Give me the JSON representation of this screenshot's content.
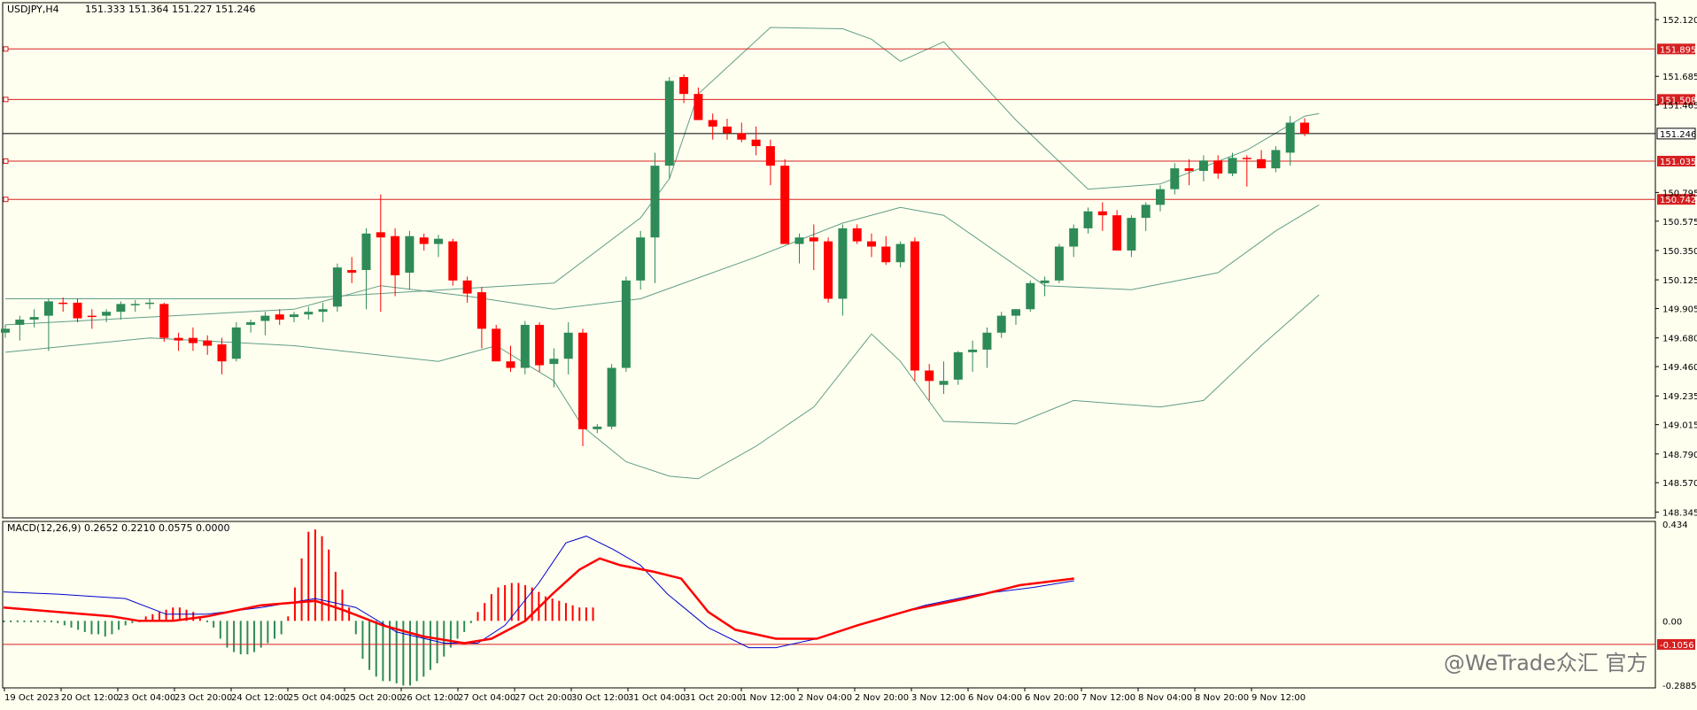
{
  "header": {
    "symbol": "USDJPY,H4",
    "ohlc": "151.333 151.364 151.227 151.246"
  },
  "macd_label": "MACD(12,26,9) 0.2652 0.2210 0.0575 0.0000",
  "watermark": "@WeTrade众汇 官方",
  "colors": {
    "background": "#fffff0",
    "bull": "#2e8b57",
    "bear": "#ff0000",
    "band": "#5f9e86",
    "level": "#d62020",
    "macd_main": "#ff0000",
    "macd_signal": "#0000cc"
  },
  "chart_data": {
    "type": "candlestick",
    "price_axis": {
      "min": 148.3,
      "max": 152.25,
      "ticks": [
        "152.120",
        "151.895",
        "151.685",
        "151.465",
        "151.246",
        "151.035",
        "150.795",
        "150.742",
        "150.575",
        "150.350",
        "150.125",
        "149.905",
        "149.680",
        "149.460",
        "149.235",
        "149.015",
        "148.790",
        "148.570",
        "148.345"
      ]
    },
    "level_lines": [
      {
        "price": 151.895,
        "label": "151.895"
      },
      {
        "price": 151.508,
        "label": "151.508"
      },
      {
        "price": 151.035,
        "label": "151.035"
      },
      {
        "price": 150.742,
        "label": "150.742"
      }
    ],
    "current_price": {
      "price": 151.246,
      "label": "151.246"
    },
    "time_labels": [
      "19 Oct 2023",
      "20 Oct 12:00",
      "23 Oct 04:00",
      "23 Oct 20:00",
      "24 Oct 12:00",
      "25 Oct 04:00",
      "25 Oct 20:00",
      "26 Oct 12:00",
      "27 Oct 04:00",
      "27 Oct 20:00",
      "30 Oct 12:00",
      "31 Oct 04:00",
      "31 Oct 20:00",
      "1 Nov 12:00",
      "2 Nov 04:00",
      "2 Nov 20:00",
      "3 Nov 12:00",
      "6 Nov 04:00",
      "6 Nov 20:00",
      "7 Nov 12:00",
      "8 Nov 04:00",
      "8 Nov 20:00",
      "9 Nov 12:00"
    ],
    "candles": [
      [
        149.72,
        149.78,
        149.68,
        149.75
      ],
      [
        149.78,
        149.85,
        149.66,
        149.82
      ],
      [
        149.82,
        149.9,
        149.76,
        149.84
      ],
      [
        149.85,
        149.98,
        149.58,
        149.96
      ],
      [
        149.95,
        149.99,
        149.88,
        149.94
      ],
      [
        149.95,
        149.98,
        149.8,
        149.83
      ],
      [
        149.85,
        149.9,
        149.75,
        149.84
      ],
      [
        149.85,
        149.9,
        149.8,
        149.88
      ],
      [
        149.88,
        149.96,
        149.82,
        149.94
      ],
      [
        149.94,
        149.97,
        149.88,
        149.94
      ],
      [
        149.94,
        149.98,
        149.9,
        149.95
      ],
      [
        149.94,
        149.95,
        149.65,
        149.68
      ],
      [
        149.68,
        149.72,
        149.58,
        149.66
      ],
      [
        149.68,
        149.76,
        149.58,
        149.64
      ],
      [
        149.66,
        149.7,
        149.55,
        149.62
      ],
      [
        149.63,
        149.68,
        149.4,
        149.5
      ],
      [
        149.52,
        149.8,
        149.5,
        149.76
      ],
      [
        149.78,
        149.82,
        149.72,
        149.8
      ],
      [
        149.81,
        149.88,
        149.7,
        149.85
      ],
      [
        149.86,
        149.9,
        149.78,
        149.82
      ],
      [
        149.84,
        149.88,
        149.8,
        149.86
      ],
      [
        149.86,
        149.92,
        149.82,
        149.88
      ],
      [
        149.88,
        149.95,
        149.8,
        149.9
      ],
      [
        149.92,
        150.25,
        149.88,
        150.22
      ],
      [
        150.2,
        150.3,
        150.1,
        150.18
      ],
      [
        150.2,
        150.52,
        149.9,
        150.48
      ],
      [
        150.49,
        150.78,
        149.88,
        150.45
      ],
      [
        150.46,
        150.52,
        150.0,
        150.16
      ],
      [
        150.18,
        150.5,
        150.05,
        150.46
      ],
      [
        150.45,
        150.48,
        150.35,
        150.4
      ],
      [
        150.4,
        150.47,
        150.3,
        150.44
      ],
      [
        150.42,
        150.44,
        150.08,
        150.12
      ],
      [
        150.12,
        150.15,
        149.95,
        150.02
      ],
      [
        150.03,
        150.07,
        149.6,
        149.75
      ],
      [
        149.75,
        149.78,
        149.5,
        149.5
      ],
      [
        149.5,
        149.62,
        149.42,
        149.45
      ],
      [
        149.45,
        149.81,
        149.4,
        149.78
      ],
      [
        149.78,
        149.8,
        149.42,
        149.47
      ],
      [
        149.48,
        149.6,
        149.3,
        149.52
      ],
      [
        149.52,
        149.8,
        149.4,
        149.72
      ],
      [
        149.72,
        149.75,
        148.85,
        148.98
      ],
      [
        148.98,
        149.02,
        148.95,
        149.0
      ],
      [
        149.0,
        149.48,
        148.98,
        149.45
      ],
      [
        149.45,
        150.15,
        149.42,
        150.12
      ],
      [
        150.12,
        150.5,
        150.05,
        150.45
      ],
      [
        150.45,
        151.1,
        150.1,
        151.0
      ],
      [
        151.0,
        151.68,
        150.9,
        151.65
      ],
      [
        151.68,
        151.7,
        151.48,
        151.55
      ],
      [
        151.55,
        151.6,
        151.35,
        151.35
      ],
      [
        151.35,
        151.4,
        151.2,
        151.3
      ],
      [
        151.3,
        151.36,
        151.2,
        151.25
      ],
      [
        151.25,
        151.33,
        151.18,
        151.2
      ],
      [
        151.2,
        151.3,
        151.08,
        151.15
      ],
      [
        151.15,
        151.2,
        150.85,
        151.0
      ],
      [
        151.0,
        151.05,
        150.4,
        150.4
      ],
      [
        150.4,
        150.48,
        150.25,
        150.45
      ],
      [
        150.45,
        150.55,
        150.2,
        150.42
      ],
      [
        150.42,
        150.45,
        149.95,
        149.98
      ],
      [
        149.98,
        150.55,
        149.85,
        150.52
      ],
      [
        150.52,
        150.55,
        150.4,
        150.42
      ],
      [
        150.42,
        150.48,
        150.3,
        150.38
      ],
      [
        150.38,
        150.46,
        150.24,
        150.26
      ],
      [
        150.26,
        150.42,
        150.22,
        150.4
      ],
      [
        150.42,
        150.45,
        149.35,
        149.43
      ],
      [
        149.43,
        149.48,
        149.2,
        149.35
      ],
      [
        149.32,
        149.5,
        149.25,
        149.35
      ],
      [
        149.36,
        149.58,
        149.32,
        149.57
      ],
      [
        149.57,
        149.66,
        149.42,
        149.59
      ],
      [
        149.59,
        149.76,
        149.45,
        149.72
      ],
      [
        149.72,
        149.88,
        149.68,
        149.85
      ],
      [
        149.85,
        149.9,
        149.78,
        149.9
      ],
      [
        149.9,
        150.12,
        149.88,
        150.1
      ],
      [
        150.1,
        150.15,
        150.0,
        150.12
      ],
      [
        150.12,
        150.4,
        150.1,
        150.38
      ],
      [
        150.38,
        150.55,
        150.3,
        150.52
      ],
      [
        150.52,
        150.68,
        150.48,
        150.65
      ],
      [
        150.65,
        150.72,
        150.5,
        150.62
      ],
      [
        150.62,
        150.66,
        150.35,
        150.35
      ],
      [
        150.35,
        150.62,
        150.3,
        150.6
      ],
      [
        150.6,
        150.72,
        150.5,
        150.7
      ],
      [
        150.7,
        150.85,
        150.65,
        150.82
      ],
      [
        150.82,
        151.02,
        150.78,
        150.98
      ],
      [
        150.98,
        151.05,
        150.85,
        150.96
      ],
      [
        150.96,
        151.08,
        150.88,
        151.04
      ],
      [
        151.04,
        151.08,
        150.9,
        150.94
      ],
      [
        150.94,
        151.1,
        150.92,
        151.06
      ],
      [
        151.06,
        151.08,
        150.84,
        151.05
      ],
      [
        151.05,
        151.12,
        150.98,
        150.98
      ],
      [
        150.98,
        151.15,
        150.95,
        151.12
      ],
      [
        151.1,
        151.38,
        151.0,
        151.33
      ],
      [
        151.33,
        151.364,
        151.227,
        151.246
      ]
    ],
    "bollinger": {
      "upper": [
        [
          0,
          149.98
        ],
        [
          20,
          149.98
        ],
        [
          38,
          150.1
        ],
        [
          44,
          150.6
        ],
        [
          46,
          150.9
        ],
        [
          48,
          151.55
        ],
        [
          53,
          152.06
        ],
        [
          58,
          152.05
        ],
        [
          60,
          151.97
        ],
        [
          62,
          151.8
        ],
        [
          65,
          151.95
        ],
        [
          70,
          151.35
        ],
        [
          75,
          150.82
        ],
        [
          80,
          150.86
        ],
        [
          86,
          151.12
        ],
        [
          90,
          151.38
        ],
        [
          91,
          151.4
        ]
      ],
      "middle": [
        [
          0,
          149.78
        ],
        [
          20,
          149.9
        ],
        [
          26,
          150.08
        ],
        [
          32,
          150.0
        ],
        [
          38,
          149.9
        ],
        [
          44,
          149.98
        ],
        [
          52,
          150.3
        ],
        [
          58,
          150.56
        ],
        [
          62,
          150.68
        ],
        [
          65,
          150.62
        ],
        [
          72,
          150.08
        ],
        [
          78,
          150.05
        ],
        [
          84,
          150.18
        ],
        [
          88,
          150.5
        ],
        [
          91,
          150.7
        ]
      ],
      "lower": [
        [
          0,
          149.57
        ],
        [
          10,
          149.68
        ],
        [
          20,
          149.62
        ],
        [
          30,
          149.5
        ],
        [
          34,
          149.62
        ],
        [
          38,
          149.35
        ],
        [
          40,
          149.0
        ],
        [
          43,
          148.73
        ],
        [
          46,
          148.62
        ],
        [
          48,
          148.6
        ],
        [
          52,
          148.85
        ],
        [
          56,
          149.15
        ],
        [
          60,
          149.71
        ],
        [
          62,
          149.5
        ],
        [
          65,
          149.04
        ],
        [
          70,
          149.02
        ],
        [
          74,
          149.2
        ],
        [
          80,
          149.15
        ],
        [
          83,
          149.2
        ],
        [
          87,
          149.62
        ],
        [
          91,
          150.01
        ]
      ]
    },
    "macd": {
      "axis": {
        "min": -0.2885,
        "max": 0.434,
        "ticks": [
          "0.434",
          "0.00",
          "-0.1056",
          "-0.2885"
        ]
      },
      "level_line": {
        "value": -0.1056,
        "label": "-0.1056"
      },
      "histogram": [
        0.0,
        0.0,
        0.0,
        0.0,
        0.0,
        0.0,
        0.0,
        0.0,
        -0.01,
        -0.02,
        -0.03,
        -0.04,
        -0.05,
        -0.06,
        -0.06,
        -0.07,
        -0.06,
        -0.04,
        -0.02,
        -0.01,
        0.0,
        0.02,
        0.03,
        0.04,
        0.05,
        0.06,
        0.06,
        0.05,
        0.04,
        0.02,
        0.0,
        -0.03,
        -0.08,
        -0.12,
        -0.14,
        -0.15,
        -0.15,
        -0.14,
        -0.12,
        -0.1,
        -0.08,
        -0.06,
        0.02,
        0.15,
        0.28,
        0.4,
        0.41,
        0.38,
        0.32,
        0.22,
        0.14,
        0.06,
        -0.06,
        -0.17,
        -0.22,
        -0.25,
        -0.27,
        -0.27,
        -0.28,
        -0.29,
        -0.29,
        -0.27,
        -0.25,
        -0.22,
        -0.19,
        -0.16,
        -0.12,
        -0.08,
        -0.05,
        -0.01,
        0.04,
        0.08,
        0.12,
        0.15,
        0.16,
        0.17,
        0.17,
        0.16,
        0.15,
        0.13,
        0.11,
        0.1,
        0.09,
        0.08,
        0.07,
        0.06,
        0.06,
        0.06
      ],
      "main": [
        [
          0,
          0.13
        ],
        [
          8,
          0.12
        ],
        [
          18,
          0.1
        ],
        [
          24,
          0.03
        ],
        [
          30,
          0.03
        ],
        [
          38,
          0.06
        ],
        [
          46,
          0.1
        ],
        [
          52,
          0.06
        ],
        [
          58,
          -0.05
        ],
        [
          65,
          -0.1
        ],
        [
          70,
          -0.1
        ],
        [
          74,
          -0.02
        ],
        [
          79,
          0.17
        ],
        [
          83,
          0.35
        ],
        [
          86,
          0.38
        ],
        [
          90,
          0.32
        ],
        [
          94,
          0.25
        ],
        [
          98,
          0.12
        ],
        [
          104,
          -0.03
        ],
        [
          110,
          -0.12
        ],
        [
          114,
          -0.12
        ],
        [
          120,
          -0.08
        ],
        [
          128,
          0.0
        ],
        [
          136,
          0.07
        ],
        [
          144,
          0.12
        ],
        [
          152,
          0.15
        ],
        [
          158,
          0.18
        ]
      ],
      "signal": [
        [
          0,
          0.06
        ],
        [
          8,
          0.04
        ],
        [
          16,
          0.02
        ],
        [
          20,
          0.0
        ],
        [
          25,
          0.0
        ],
        [
          30,
          0.02
        ],
        [
          38,
          0.07
        ],
        [
          46,
          0.09
        ],
        [
          50,
          0.05
        ],
        [
          56,
          -0.02
        ],
        [
          62,
          -0.07
        ],
        [
          68,
          -0.1
        ],
        [
          72,
          -0.08
        ],
        [
          77,
          0.0
        ],
        [
          81,
          0.12
        ],
        [
          85,
          0.23
        ],
        [
          88,
          0.28
        ],
        [
          91,
          0.25
        ],
        [
          96,
          0.22
        ],
        [
          100,
          0.19
        ],
        [
          104,
          0.04
        ],
        [
          108,
          -0.04
        ],
        [
          114,
          -0.08
        ],
        [
          120,
          -0.08
        ],
        [
          126,
          -0.02
        ],
        [
          134,
          0.05
        ],
        [
          142,
          0.1
        ],
        [
          150,
          0.16
        ],
        [
          158,
          0.19
        ]
      ]
    }
  }
}
